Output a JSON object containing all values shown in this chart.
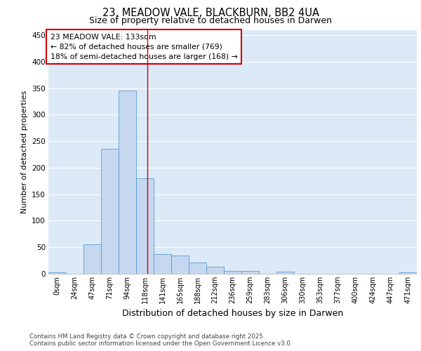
{
  "title_line1": "23, MEADOW VALE, BLACKBURN, BB2 4UA",
  "title_line2": "Size of property relative to detached houses in Darwen",
  "xlabel": "Distribution of detached houses by size in Darwen",
  "ylabel": "Number of detached properties",
  "bin_labels": [
    "0sqm",
    "24sqm",
    "47sqm",
    "71sqm",
    "94sqm",
    "118sqm",
    "141sqm",
    "165sqm",
    "188sqm",
    "212sqm",
    "236sqm",
    "259sqm",
    "283sqm",
    "306sqm",
    "330sqm",
    "353sqm",
    "377sqm",
    "400sqm",
    "424sqm",
    "447sqm",
    "471sqm"
  ],
  "bar_values": [
    2,
    0,
    56,
    235,
    345,
    180,
    37,
    35,
    21,
    13,
    5,
    5,
    0,
    4,
    0,
    0,
    0,
    0,
    0,
    0,
    2
  ],
  "bar_color": "#c5d8f0",
  "bar_edge_color": "#5b9bd5",
  "background_color": "#dce9f7",
  "grid_color": "#ffffff",
  "vline_x": 5.647,
  "vline_color": "#cc0000",
  "annotation_text": "23 MEADOW VALE: 133sqm\n← 82% of detached houses are smaller (769)\n18% of semi-detached houses are larger (168) →",
  "annotation_box_color": "#ffffff",
  "annotation_box_edgecolor": "#cc0000",
  "ylim": [
    0,
    460
  ],
  "yticks": [
    0,
    50,
    100,
    150,
    200,
    250,
    300,
    350,
    400,
    450
  ],
  "footer_line1": "Contains HM Land Registry data © Crown copyright and database right 2025.",
  "footer_line2": "Contains public sector information licensed under the Open Government Licence v3.0."
}
